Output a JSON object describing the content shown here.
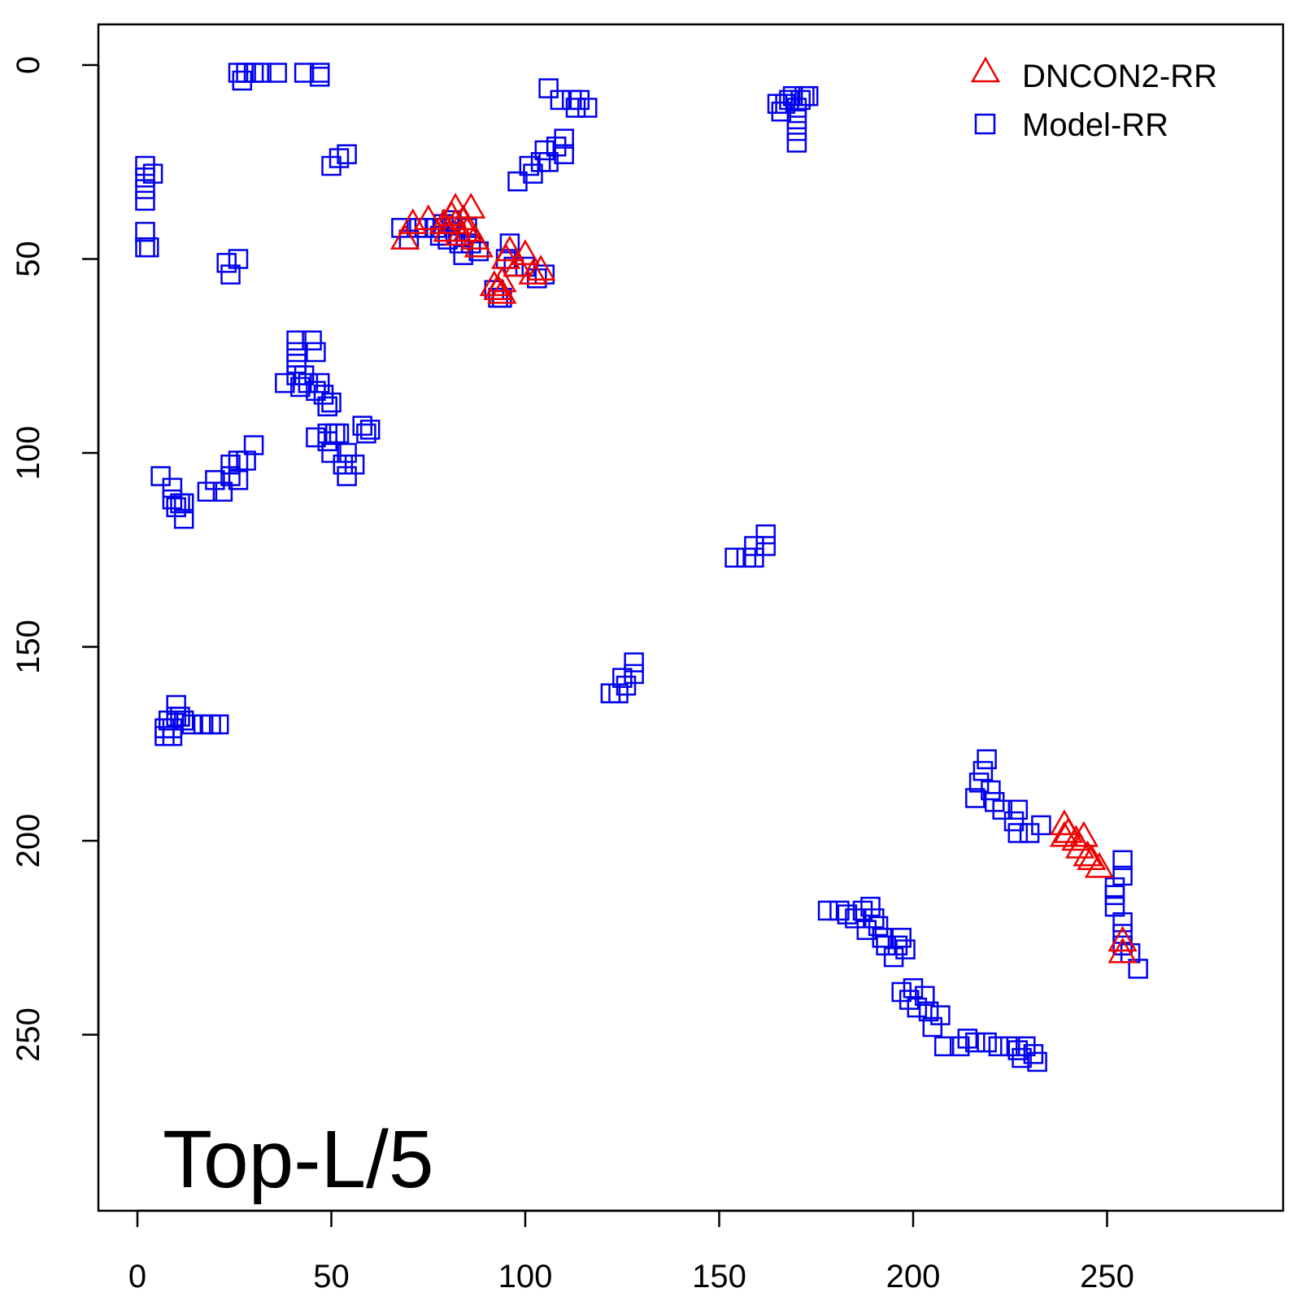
{
  "chart_data": {
    "type": "scatter",
    "title": "",
    "xlabel": "",
    "ylabel": "",
    "xlim": [
      -10,
      297
    ],
    "ylim": [
      297,
      -10
    ],
    "y_reversed": true,
    "grid": false,
    "legend_position": "top-right",
    "xticks": [
      0,
      50,
      100,
      150,
      200,
      250
    ],
    "xtick_labels": [
      "0",
      "50",
      "100",
      "150",
      "200",
      "250"
    ],
    "yticks": [
      0,
      50,
      100,
      150,
      200,
      250
    ],
    "ytick_labels": [
      "0",
      "50",
      "100",
      "150",
      "200",
      "250"
    ],
    "annotation": "Top-L/5",
    "series": [
      {
        "name": "Model-RR",
        "marker": "square",
        "color": "#0000EE",
        "points": [
          [
            26,
            2
          ],
          [
            27,
            4
          ],
          [
            28,
            2
          ],
          [
            30,
            2
          ],
          [
            32,
            2
          ],
          [
            36,
            2
          ],
          [
            43,
            2
          ],
          [
            47,
            2
          ],
          [
            47,
            3
          ],
          [
            2,
            26
          ],
          [
            2,
            29
          ],
          [
            2,
            32
          ],
          [
            2,
            35
          ],
          [
            4,
            28
          ],
          [
            2,
            43
          ],
          [
            2,
            47
          ],
          [
            3,
            47
          ],
          [
            50,
            26
          ],
          [
            52,
            24
          ],
          [
            54,
            23
          ],
          [
            23,
            51
          ],
          [
            24,
            54
          ],
          [
            26,
            50
          ],
          [
            68,
            42
          ],
          [
            70,
            45
          ],
          [
            72,
            42
          ],
          [
            74,
            42
          ],
          [
            77,
            42
          ],
          [
            78,
            44
          ],
          [
            79,
            41
          ],
          [
            80,
            45
          ],
          [
            81,
            40
          ],
          [
            82,
            43
          ],
          [
            83,
            46
          ],
          [
            84,
            49
          ],
          [
            85,
            42
          ],
          [
            86,
            46
          ],
          [
            88,
            48
          ],
          [
            92,
            58
          ],
          [
            93,
            60
          ],
          [
            94,
            60
          ],
          [
            95,
            50
          ],
          [
            96,
            46
          ],
          [
            97,
            52
          ],
          [
            100,
            52
          ],
          [
            103,
            55
          ],
          [
            105,
            54
          ],
          [
            98,
            30
          ],
          [
            101,
            26
          ],
          [
            102,
            28
          ],
          [
            104,
            25
          ],
          [
            105,
            22
          ],
          [
            106,
            25
          ],
          [
            108,
            21
          ],
          [
            110,
            23
          ],
          [
            110,
            19
          ],
          [
            106,
            6
          ],
          [
            109,
            9
          ],
          [
            112,
            9
          ],
          [
            113,
            11
          ],
          [
            114,
            9
          ],
          [
            116,
            11
          ],
          [
            165,
            10
          ],
          [
            166,
            12
          ],
          [
            167,
            10
          ],
          [
            168,
            9
          ],
          [
            169,
            8
          ],
          [
            170,
            11
          ],
          [
            170,
            14
          ],
          [
            170,
            17
          ],
          [
            170,
            20
          ],
          [
            171,
            9
          ],
          [
            172,
            8
          ],
          [
            173,
            8
          ],
          [
            38,
            82
          ],
          [
            41,
            71
          ],
          [
            41,
            74
          ],
          [
            41,
            77
          ],
          [
            41,
            80
          ],
          [
            42,
            83
          ],
          [
            43,
            80
          ],
          [
            44,
            82
          ],
          [
            45,
            71
          ],
          [
            46,
            74
          ],
          [
            46,
            84
          ],
          [
            47,
            82
          ],
          [
            48,
            85
          ],
          [
            49,
            88
          ],
          [
            50,
            87
          ],
          [
            51,
            95
          ],
          [
            49,
            95
          ],
          [
            46,
            96
          ],
          [
            49,
            97
          ],
          [
            50,
            100
          ],
          [
            52,
            95
          ],
          [
            53,
            103
          ],
          [
            54,
            100
          ],
          [
            54,
            106
          ],
          [
            56,
            103
          ],
          [
            58,
            93
          ],
          [
            59,
            95
          ],
          [
            60,
            94
          ],
          [
            6,
            106
          ],
          [
            9,
            109
          ],
          [
            9,
            112
          ],
          [
            10,
            114
          ],
          [
            11,
            113
          ],
          [
            12,
            113
          ],
          [
            12,
            117
          ],
          [
            18,
            110
          ],
          [
            20,
            107
          ],
          [
            22,
            110
          ],
          [
            24,
            106
          ],
          [
            24,
            103
          ],
          [
            26,
            107
          ],
          [
            26,
            102
          ],
          [
            28,
            102
          ],
          [
            30,
            98
          ],
          [
            7,
            171
          ],
          [
            7,
            173
          ],
          [
            8,
            169
          ],
          [
            9,
            171
          ],
          [
            9,
            173
          ],
          [
            10,
            168
          ],
          [
            10,
            165
          ],
          [
            11,
            168
          ],
          [
            12,
            169
          ],
          [
            14,
            170
          ],
          [
            17,
            170
          ],
          [
            19,
            170
          ],
          [
            21,
            170
          ],
          [
            122,
            162
          ],
          [
            124,
            162
          ],
          [
            125,
            158
          ],
          [
            126,
            160
          ],
          [
            128,
            157
          ],
          [
            128,
            154
          ],
          [
            154,
            127
          ],
          [
            157,
            127
          ],
          [
            159,
            124
          ],
          [
            159,
            127
          ],
          [
            162,
            124
          ],
          [
            162,
            121
          ],
          [
            216,
            189
          ],
          [
            217,
            185
          ],
          [
            218,
            182
          ],
          [
            219,
            179
          ],
          [
            220,
            187
          ],
          [
            221,
            190
          ],
          [
            223,
            192
          ],
          [
            226,
            195
          ],
          [
            227,
            192
          ],
          [
            227,
            198
          ],
          [
            230,
            198
          ],
          [
            233,
            196
          ],
          [
            254,
            205
          ],
          [
            254,
            209
          ],
          [
            252,
            212
          ],
          [
            252,
            214
          ],
          [
            252,
            217
          ],
          [
            254,
            221
          ],
          [
            254,
            224
          ],
          [
            254,
            227
          ],
          [
            256,
            229
          ],
          [
            258,
            233
          ],
          [
            178,
            218
          ],
          [
            181,
            218
          ],
          [
            183,
            219
          ],
          [
            185,
            220
          ],
          [
            187,
            218
          ],
          [
            188,
            223
          ],
          [
            189,
            217
          ],
          [
            190,
            220
          ],
          [
            191,
            222
          ],
          [
            192,
            225
          ],
          [
            193,
            227
          ],
          [
            195,
            230
          ],
          [
            196,
            227
          ],
          [
            197,
            225
          ],
          [
            198,
            228
          ],
          [
            197,
            239
          ],
          [
            199,
            241
          ],
          [
            200,
            238
          ],
          [
            201,
            243
          ],
          [
            203,
            240
          ],
          [
            204,
            244
          ],
          [
            205,
            248
          ],
          [
            207,
            245
          ],
          [
            208,
            253
          ],
          [
            212,
            253
          ],
          [
            214,
            251
          ],
          [
            216,
            252
          ],
          [
            219,
            252
          ],
          [
            222,
            253
          ],
          [
            225,
            253
          ],
          [
            227,
            254
          ],
          [
            228,
            256
          ],
          [
            229,
            253
          ],
          [
            231,
            255
          ],
          [
            232,
            257
          ]
        ]
      },
      {
        "name": "DNCON2-RR",
        "marker": "triangle",
        "color": "#EE0000",
        "points": [
          [
            69,
            45
          ],
          [
            71,
            41
          ],
          [
            75,
            40
          ],
          [
            79,
            41
          ],
          [
            80,
            43
          ],
          [
            81,
            39
          ],
          [
            82,
            37
          ],
          [
            82,
            41
          ],
          [
            83,
            44
          ],
          [
            84,
            40
          ],
          [
            85,
            43
          ],
          [
            86,
            37
          ],
          [
            87,
            45
          ],
          [
            88,
            47
          ],
          [
            92,
            57
          ],
          [
            93,
            58
          ],
          [
            94,
            59
          ],
          [
            94,
            56
          ],
          [
            95,
            50
          ],
          [
            96,
            48
          ],
          [
            98,
            52
          ],
          [
            100,
            49
          ],
          [
            102,
            54
          ],
          [
            104,
            53
          ],
          [
            239,
            196
          ],
          [
            239,
            199
          ],
          [
            240,
            198
          ],
          [
            242,
            200
          ],
          [
            243,
            202
          ],
          [
            244,
            199
          ],
          [
            245,
            204
          ],
          [
            246,
            205
          ],
          [
            248,
            207
          ],
          [
            254,
            226
          ],
          [
            254,
            229
          ]
        ]
      }
    ]
  }
}
